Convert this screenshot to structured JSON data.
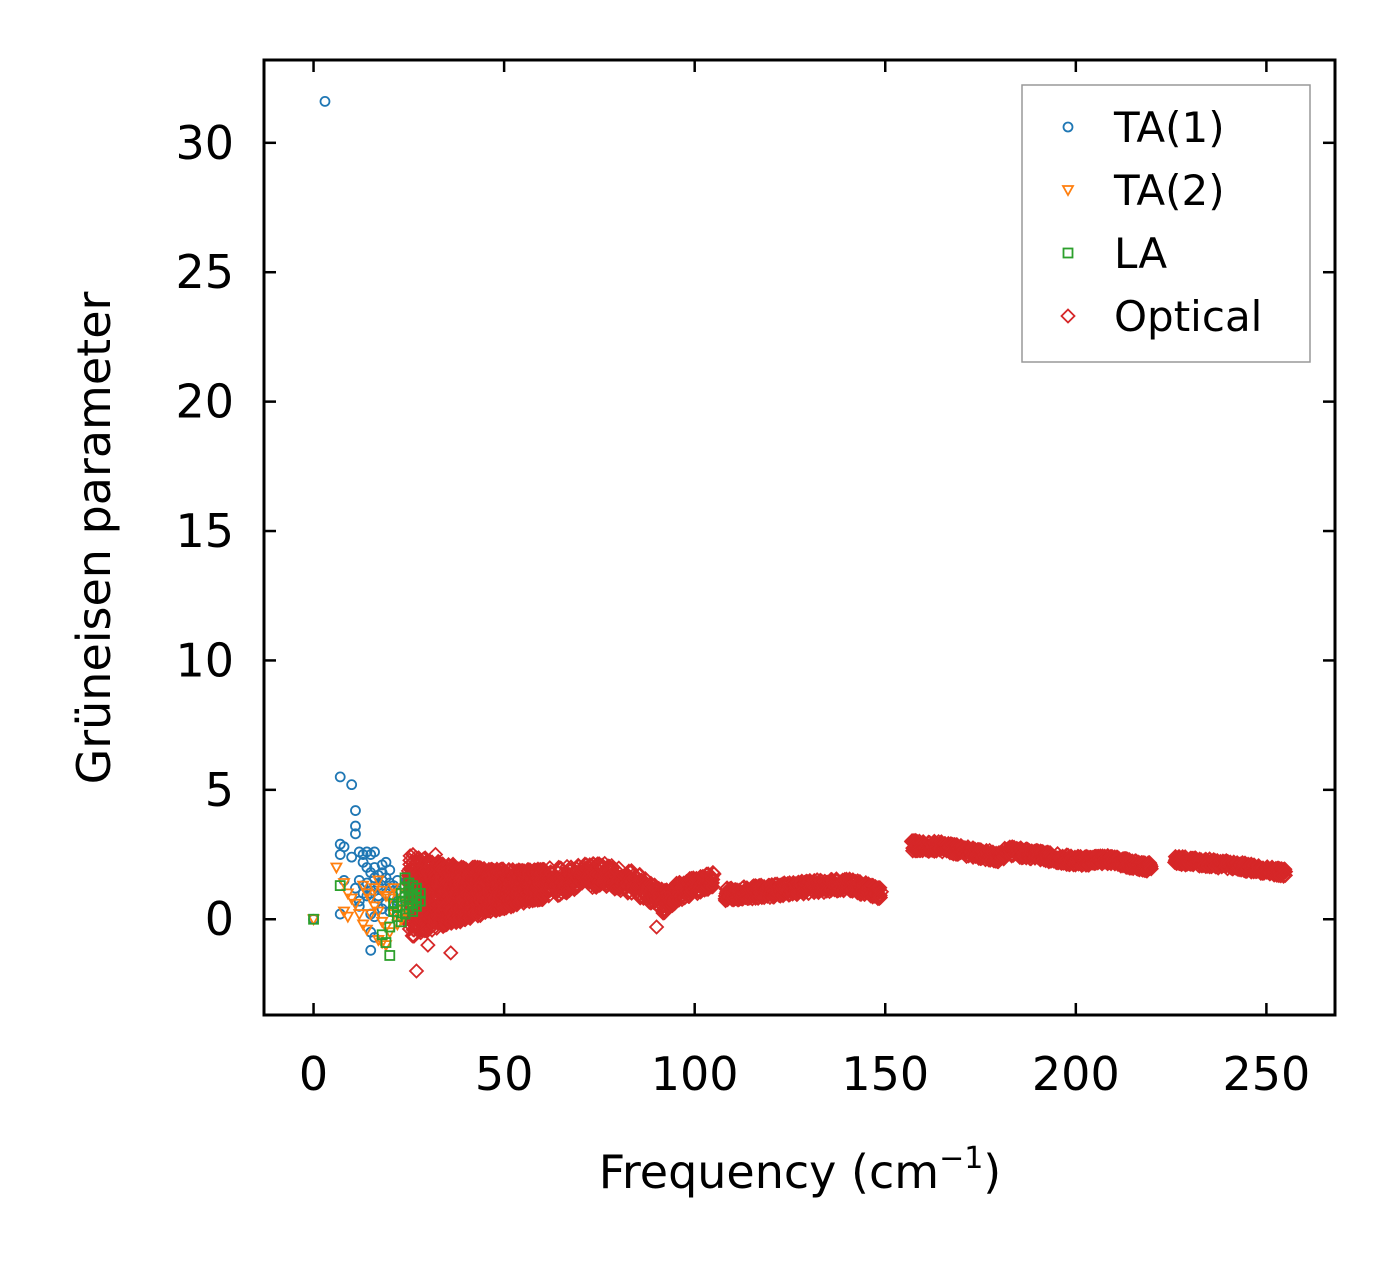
{
  "chart_data": {
    "type": "scatter",
    "title": "",
    "xlabel": "Frequency (cm",
    "xlabel_sup": "−1",
    "xlabel_close": ")",
    "ylabel": "Grüneisen parameter",
    "xlim": [
      -13,
      268
    ],
    "ylim": [
      -3.7,
      33.2
    ],
    "xticks": [
      0,
      50,
      100,
      150,
      200,
      250
    ],
    "yticks": [
      0,
      5,
      10,
      15,
      20,
      25,
      30
    ],
    "legend_position": "top-right",
    "colors": {
      "ta1": "#1f77b4",
      "ta2": "#ff7f0e",
      "la": "#2ca02c",
      "optical": "#d62728",
      "axis": "#000000",
      "legend_border": "#999999"
    },
    "series": [
      {
        "name": "TA(1)",
        "marker": "circle",
        "color": "#1f77b4",
        "points": [
          [
            3,
            31.6
          ],
          [
            0,
            0
          ],
          [
            7,
            5.5
          ],
          [
            10,
            5.2
          ],
          [
            11,
            4.2
          ],
          [
            11,
            3.6
          ],
          [
            11,
            3.3
          ],
          [
            7,
            2.9
          ],
          [
            8,
            2.8
          ],
          [
            7,
            2.5
          ],
          [
            10,
            2.4
          ],
          [
            12,
            2.6
          ],
          [
            13,
            2.5
          ],
          [
            14,
            2.6
          ],
          [
            15,
            2.5
          ],
          [
            16,
            2.6
          ],
          [
            13,
            2.2
          ],
          [
            14,
            2.0
          ],
          [
            15,
            1.8
          ],
          [
            16,
            1.6
          ],
          [
            17,
            1.7
          ],
          [
            18,
            2.1
          ],
          [
            19,
            2.2
          ],
          [
            20,
            1.9
          ],
          [
            18,
            1.5
          ],
          [
            17,
            1.3
          ],
          [
            16,
            1.1
          ],
          [
            15,
            1.0
          ],
          [
            14,
            0.9
          ],
          [
            17,
            0.8
          ],
          [
            19,
            1.0
          ],
          [
            20,
            1.2
          ],
          [
            21,
            0.9
          ],
          [
            22,
            1.1
          ],
          [
            13,
            1.3
          ],
          [
            12,
            1.5
          ],
          [
            11,
            1.2
          ],
          [
            8,
            1.5
          ],
          [
            7,
            0.2
          ],
          [
            12,
            0.5
          ],
          [
            15,
            0.2
          ],
          [
            16,
            0.1
          ],
          [
            15,
            -0.5
          ],
          [
            16,
            -0.7
          ],
          [
            15,
            -1.2
          ],
          [
            18,
            0.4
          ],
          [
            19,
            0.6
          ],
          [
            20,
            0.3
          ],
          [
            21,
            0.5
          ],
          [
            22,
            0.7
          ],
          [
            17,
            0.9
          ],
          [
            18,
            1.8
          ],
          [
            19,
            1.6
          ],
          [
            20,
            1.4
          ],
          [
            16,
            2.0
          ],
          [
            14,
            1.4
          ],
          [
            13,
            1.0
          ],
          [
            12,
            0.7
          ],
          [
            21,
            1.3
          ],
          [
            22,
            1.5
          ]
        ]
      },
      {
        "name": "TA(2)",
        "marker": "triangle-down",
        "color": "#ff7f0e",
        "points": [
          [
            0,
            0
          ],
          [
            6,
            2.0
          ],
          [
            8,
            1.4
          ],
          [
            9,
            1.0
          ],
          [
            10,
            0.8
          ],
          [
            11,
            0.6
          ],
          [
            8,
            0.3
          ],
          [
            9,
            0.1
          ],
          [
            12,
            0.2
          ],
          [
            13,
            -0.2
          ],
          [
            14,
            -0.4
          ],
          [
            15,
            0.2
          ],
          [
            16,
            0.5
          ],
          [
            17,
            0.3
          ],
          [
            18,
            -0.1
          ],
          [
            19,
            -0.3
          ],
          [
            20,
            -0.5
          ],
          [
            17,
            -0.8
          ],
          [
            18,
            -0.9
          ],
          [
            19,
            -1.0
          ],
          [
            20,
            0.8
          ],
          [
            21,
            1.2
          ],
          [
            22,
            1.0
          ],
          [
            23,
            0.6
          ],
          [
            24,
            0.4
          ],
          [
            21,
            0.2
          ],
          [
            22,
            -0.2
          ],
          [
            23,
            0.0
          ],
          [
            16,
            1.2
          ],
          [
            17,
            1.5
          ],
          [
            18,
            1.1
          ],
          [
            19,
            0.9
          ],
          [
            15,
            0.8
          ],
          [
            14,
            1.0
          ],
          [
            13,
            1.3
          ]
        ]
      },
      {
        "name": "LA",
        "marker": "square",
        "color": "#2ca02c",
        "points": [
          [
            0,
            0
          ],
          [
            7,
            1.3
          ],
          [
            20,
            -1.4
          ],
          [
            19,
            -0.9
          ],
          [
            18,
            -0.6
          ],
          [
            20,
            -0.3
          ],
          [
            21,
            0.3
          ],
          [
            22,
            0.5
          ],
          [
            23,
            0.7
          ],
          [
            24,
            0.9
          ],
          [
            25,
            1.1
          ],
          [
            26,
            1.3
          ],
          [
            24,
            1.6
          ],
          [
            25,
            0.4
          ],
          [
            26,
            0.6
          ],
          [
            27,
            0.8
          ],
          [
            28,
            1.0
          ],
          [
            27,
            1.2
          ],
          [
            28,
            0.7
          ],
          [
            26,
            0.9
          ],
          [
            25,
            1.4
          ],
          [
            24,
            0.2
          ],
          [
            23,
            -0.1
          ],
          [
            22,
            0.1
          ],
          [
            21,
            0.6
          ],
          [
            23,
            1.0
          ],
          [
            24,
            1.2
          ],
          [
            27,
            0.5
          ],
          [
            26,
            0.3
          ],
          [
            25,
            0.8
          ]
        ]
      },
      {
        "name": "Optical",
        "marker": "diamond",
        "color": "#d62728",
        "generator": {
          "segments": [
            [
              [
                25,
                0.9
              ],
              [
                40,
                1.0
              ],
              [
                60,
                1.35
              ],
              [
                75,
                1.75
              ],
              [
                85,
                1.35
              ],
              [
                92,
                0.65
              ],
              [
                95,
                1.0
              ],
              [
                105,
                1.55
              ]
            ],
            [
              [
                108,
                0.95
              ],
              [
                120,
                1.1
              ],
              [
                130,
                1.25
              ],
              [
                140,
                1.35
              ],
              [
                149,
                1.0
              ]
            ],
            [
              [
                157,
                2.85
              ],
              [
                165,
                2.8
              ],
              [
                172,
                2.6
              ],
              [
                180,
                2.4
              ],
              [
                182,
                2.65
              ],
              [
                200,
                2.25
              ],
              [
                208,
                2.3
              ],
              [
                220,
                2.0
              ]
            ],
            [
              [
                226,
                2.3
              ],
              [
                240,
                2.1
              ],
              [
                255,
                1.8
              ]
            ]
          ],
          "spread_profile": [
            [
              25,
              3.3
            ],
            [
              35,
              2.4
            ],
            [
              45,
              1.8
            ],
            [
              55,
              1.3
            ],
            [
              70,
              1.0
            ],
            [
              90,
              0.9
            ],
            [
              110,
              0.5
            ],
            [
              150,
              0.5
            ],
            [
              160,
              0.4
            ],
            [
              256,
              0.3
            ]
          ],
          "outliers": [
            [
              27,
              -2.0
            ],
            [
              36,
              -1.3
            ],
            [
              32,
              2.5
            ],
            [
              30,
              -1.0
            ],
            [
              90,
              -0.3
            ]
          ]
        }
      }
    ]
  }
}
